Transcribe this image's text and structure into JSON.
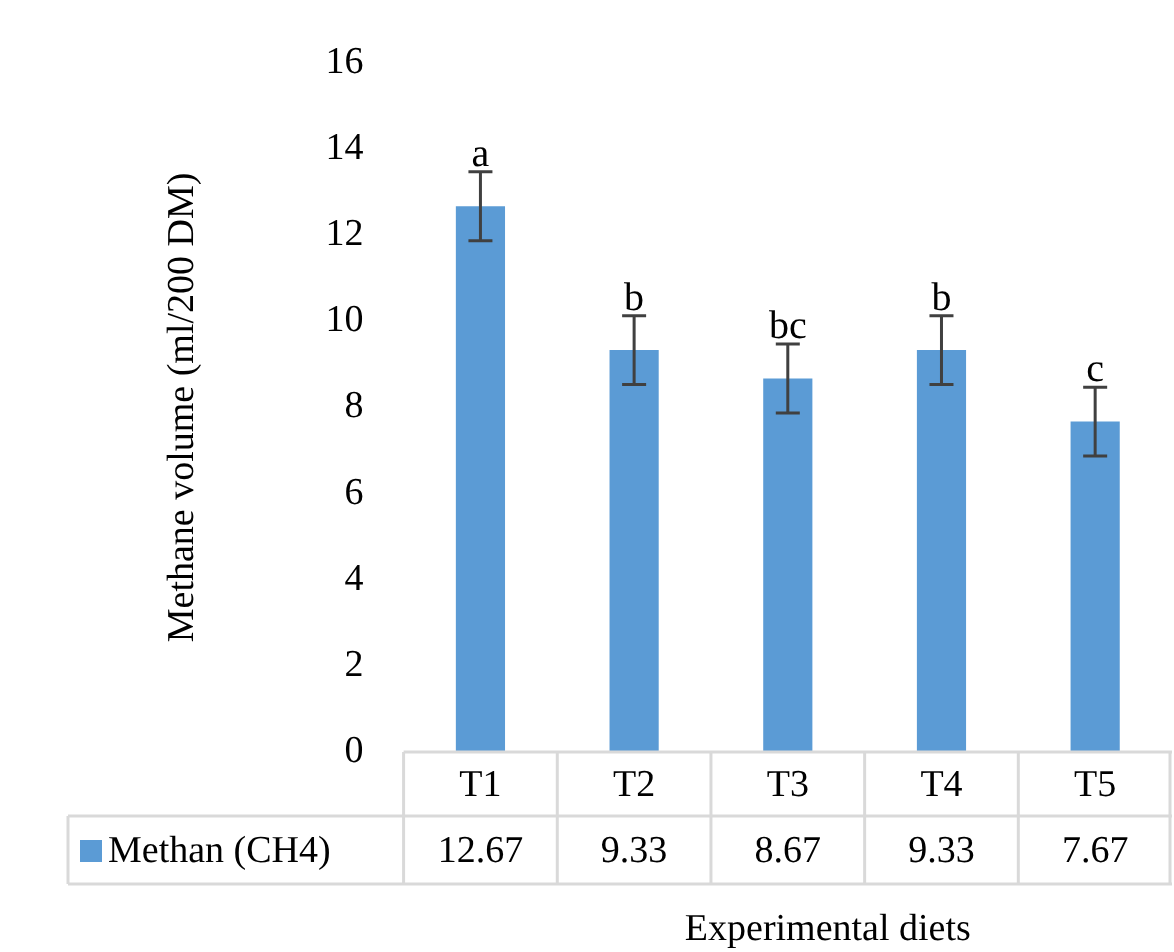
{
  "chart_data": {
    "type": "bar",
    "xlabel": "Experimental diets",
    "ylabel": "Methane volume (ml/200 DM)",
    "categories": [
      "T1",
      "T2",
      "T3",
      "T4",
      "T5"
    ],
    "series": [
      {
        "name": "Methan (CH4)",
        "color": "#5b9bd5",
        "values": [
          12.67,
          9.33,
          8.67,
          9.33,
          7.67
        ],
        "errors": [
          0.8,
          0.8,
          0.8,
          0.8,
          0.8
        ]
      }
    ],
    "ylim": [
      0,
      16
    ],
    "yticks": [
      0,
      2,
      4,
      6,
      8,
      10,
      12,
      14,
      16
    ],
    "grid": false,
    "legend": "bottom",
    "data_labels": true,
    "annotations": [
      {
        "text": "a",
        "x": "T1",
        "y": 13.47
      },
      {
        "text": "b",
        "x": "T2",
        "y": 10.13
      },
      {
        "text": "bc",
        "x": "T3",
        "y": 9.47
      },
      {
        "text": "b",
        "x": "T4",
        "y": 10.13
      },
      {
        "text": "c",
        "x": "T5",
        "y": 8.47
      }
    ]
  }
}
